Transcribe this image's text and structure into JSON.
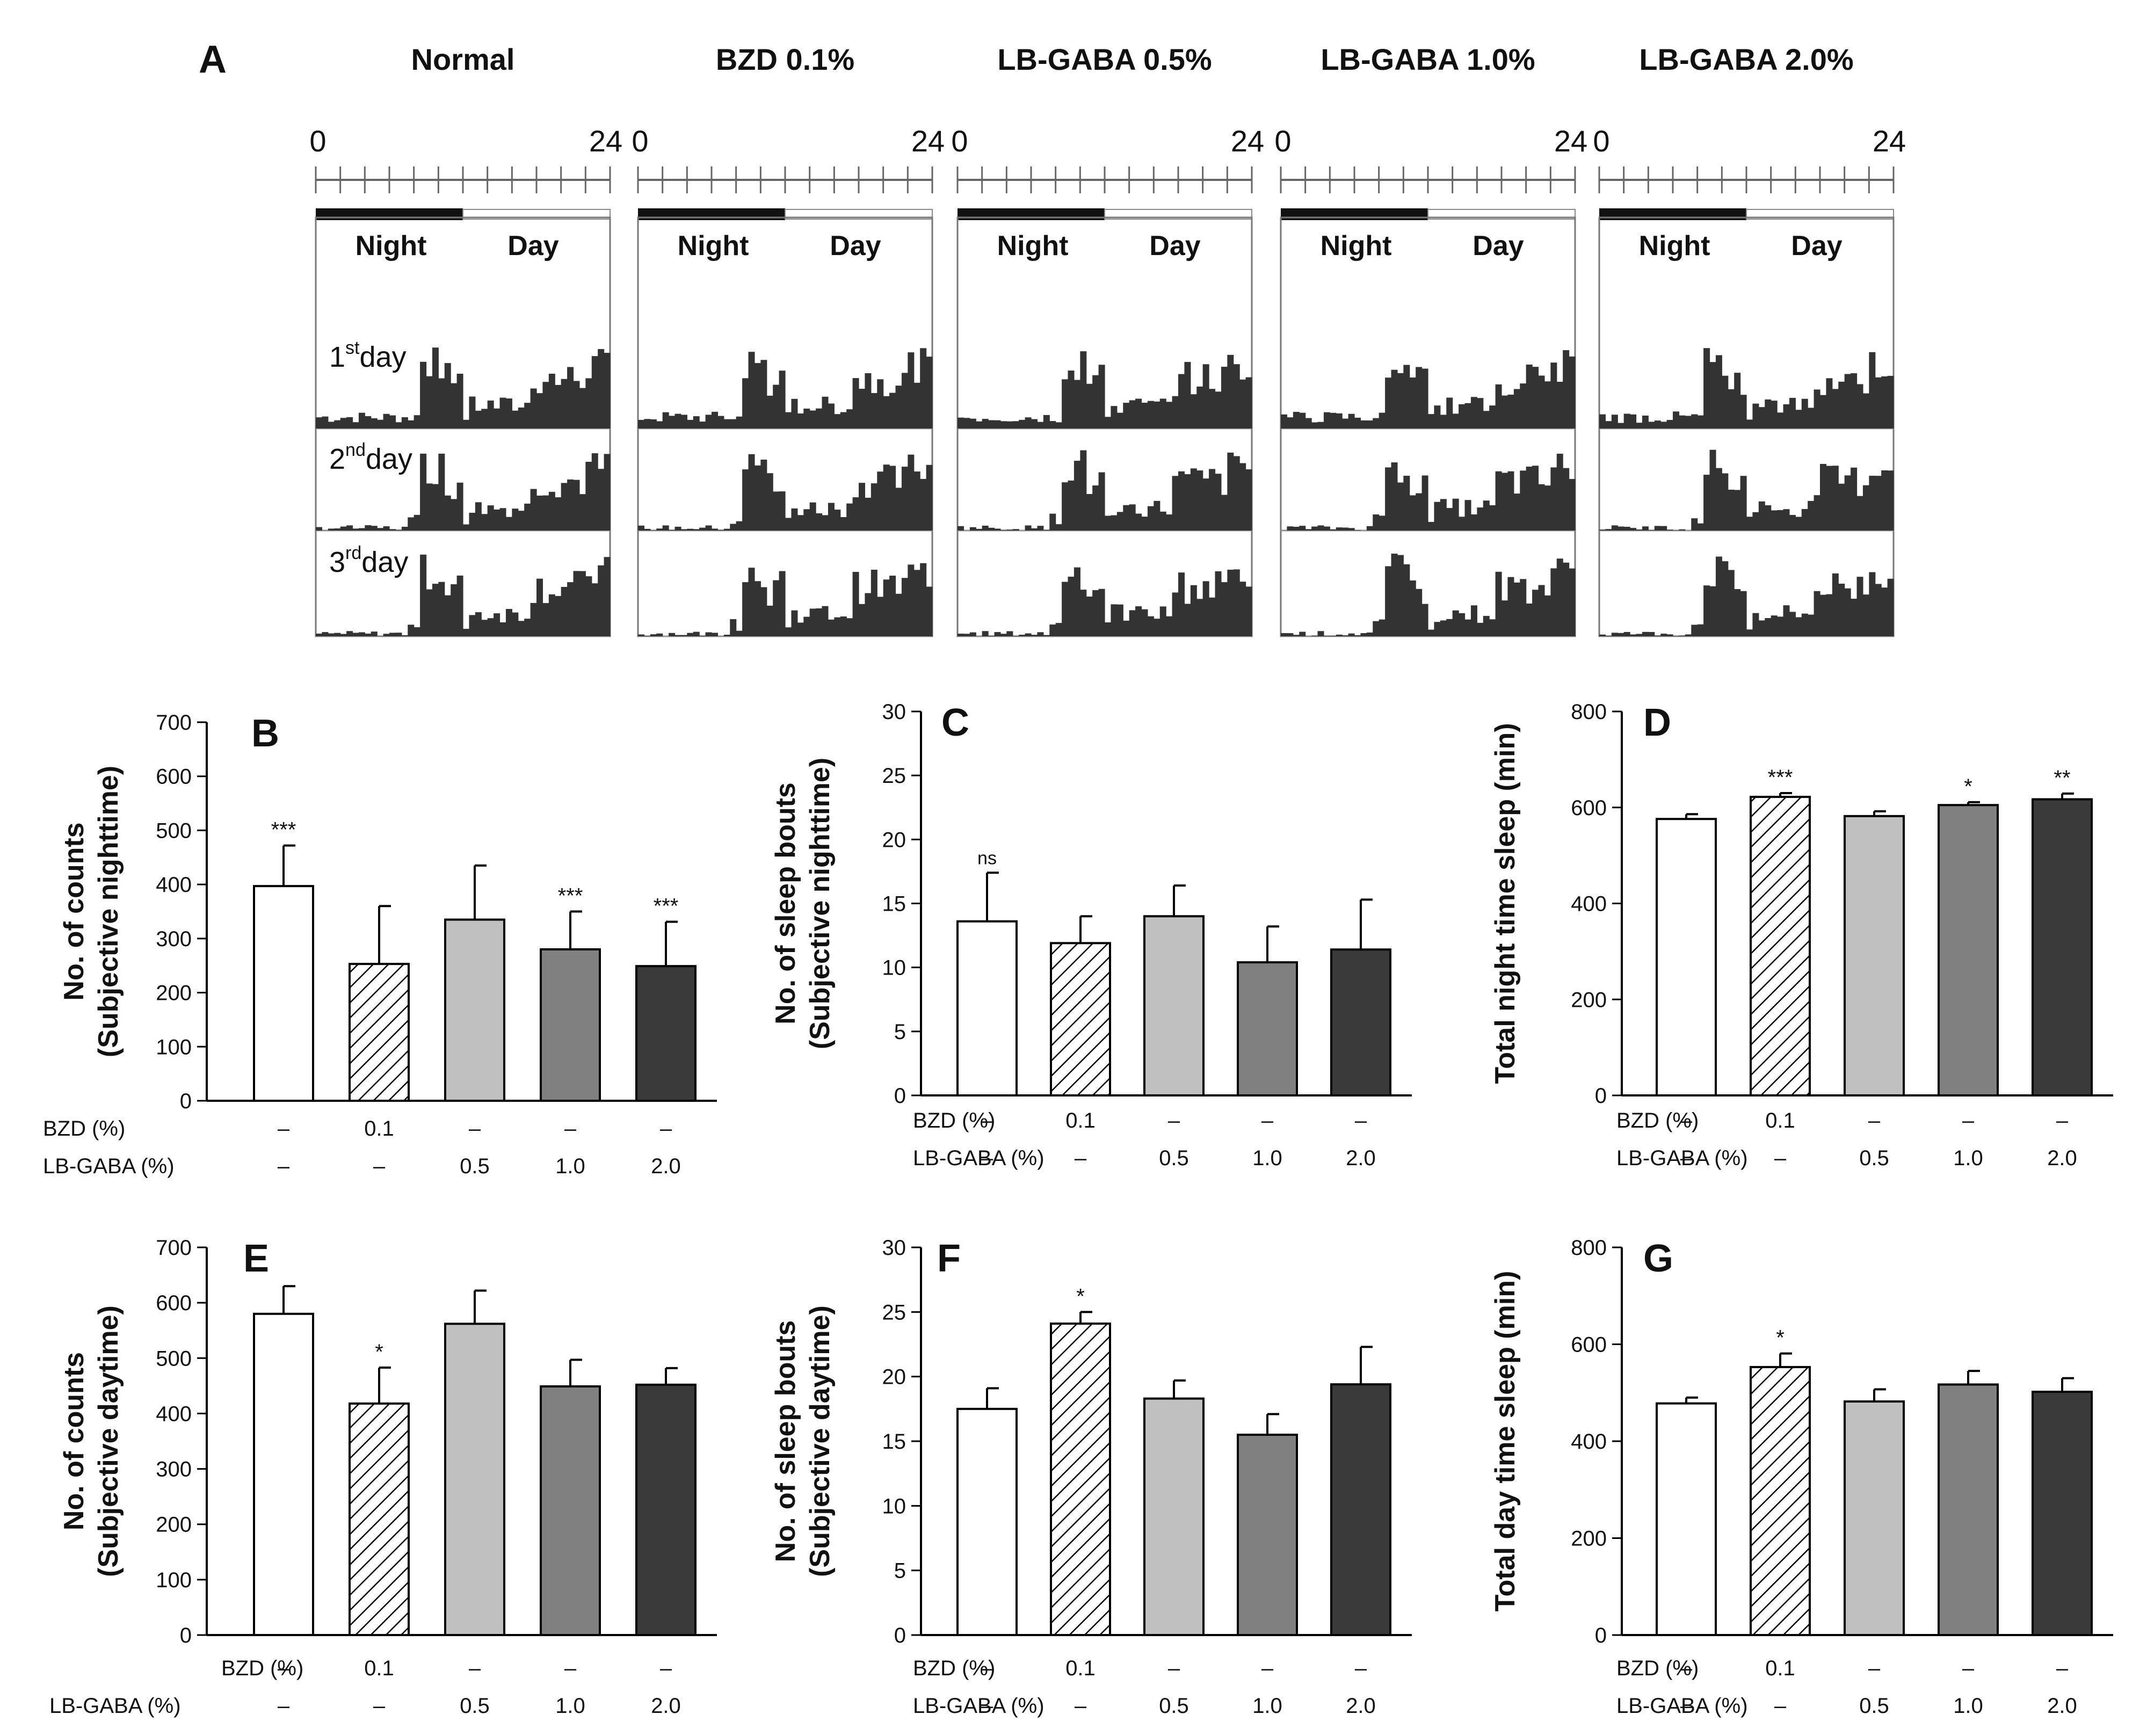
{
  "panel_a": {
    "label": "A",
    "axis_start": "0",
    "axis_end": "24",
    "night_label": "Night",
    "day_label": "Day",
    "day_labels": [
      {
        "num": "1",
        "sup": "st",
        "word": "day"
      },
      {
        "num": "2",
        "sup": "nd",
        "word": "day"
      },
      {
        "num": "3",
        "sup": "rd",
        "word": "day"
      }
    ],
    "groups": [
      "Normal",
      "BZD 0.1%",
      "LB-GABA 0.5%",
      "LB-GABA 1.0%",
      "LB-GABA 2.0%"
    ],
    "colors": {
      "bar": "#333333",
      "night_bar": "#111111",
      "border": "#777777"
    }
  },
  "conditions": {
    "row1_label": "BZD  (%)",
    "row2_label": "LB-GABA (%)",
    "bzd": [
      "–",
      "0.1",
      "–",
      "–",
      "–"
    ],
    "lbgaba": [
      "–",
      "–",
      "0.5",
      "1.0",
      "2.0"
    ]
  },
  "bar_style": {
    "fills": [
      "#ffffff",
      "hatch",
      "#c0c0c0",
      "#808080",
      "#3a3a3a"
    ],
    "stroke": "#000000"
  },
  "chart_data": [
    {
      "id": "B",
      "type": "bar",
      "label": "B",
      "ylabel": [
        "No. of counts",
        "(Subjective nighttime)"
      ],
      "ylim": [
        0,
        700
      ],
      "yticks": [
        0,
        100,
        200,
        300,
        400,
        500,
        600,
        700
      ],
      "categories": [
        "Normal",
        "BZD 0.1%",
        "LB-GABA 0.5%",
        "LB-GABA 1.0%",
        "LB-GABA 2.0%"
      ],
      "values": [
        397,
        253,
        335,
        280,
        249
      ],
      "errors": [
        75,
        107,
        100,
        70,
        82
      ],
      "sig": [
        "***",
        "",
        "",
        "***",
        "***"
      ]
    },
    {
      "id": "C",
      "type": "bar",
      "label": "C",
      "ylabel": [
        "No. of sleep bouts",
        "(Subjective nighttime)"
      ],
      "ylim": [
        0,
        30
      ],
      "yticks": [
        0,
        5,
        10,
        15,
        20,
        25,
        30
      ],
      "categories": [
        "Normal",
        "BZD 0.1%",
        "LB-GABA 0.5%",
        "LB-GABA 1.0%",
        "LB-GABA 2.0%"
      ],
      "values": [
        13.6,
        11.9,
        14.0,
        10.4,
        11.4
      ],
      "errors": [
        3.8,
        2.1,
        2.4,
        2.8,
        3.9
      ],
      "sig": [
        "ns",
        "",
        "",
        "",
        ""
      ]
    },
    {
      "id": "D",
      "type": "bar",
      "label": "D",
      "ylabel": [
        "Total night time sleep (min)"
      ],
      "ylim": [
        0,
        800
      ],
      "yticks": [
        0,
        200,
        400,
        600,
        800
      ],
      "categories": [
        "Normal",
        "BZD 0.1%",
        "LB-GABA 0.5%",
        "LB-GABA 1.0%",
        "LB-GABA 2.0%"
      ],
      "values": [
        576,
        622,
        582,
        605,
        617
      ],
      "errors": [
        10,
        8,
        10,
        6,
        12
      ],
      "sig": [
        "",
        "***",
        "",
        "*",
        "**"
      ]
    },
    {
      "id": "E",
      "type": "bar",
      "label": "E",
      "ylabel": [
        "No. of counts",
        "(Subjective daytime)"
      ],
      "ylim": [
        0,
        700
      ],
      "yticks": [
        0,
        100,
        200,
        300,
        400,
        500,
        600,
        700
      ],
      "categories": [
        "Normal",
        "BZD 0.1%",
        "LB-GABA 0.5%",
        "LB-GABA 1.0%",
        "LB-GABA 2.0%"
      ],
      "values": [
        580,
        418,
        562,
        449,
        452
      ],
      "errors": [
        50,
        65,
        60,
        48,
        30
      ],
      "sig": [
        "",
        "*",
        "",
        "",
        ""
      ]
    },
    {
      "id": "F",
      "type": "bar",
      "label": "F",
      "ylabel": [
        "No. of sleep bouts",
        "(Subjective daytime)"
      ],
      "ylim": [
        0,
        30
      ],
      "yticks": [
        0,
        5,
        10,
        15,
        20,
        25,
        30
      ],
      "categories": [
        "Normal",
        "BZD 0.1%",
        "LB-GABA 0.5%",
        "LB-GABA 1.0%",
        "LB-GABA 2.0%"
      ],
      "values": [
        17.5,
        24.1,
        18.3,
        15.5,
        19.4
      ],
      "errors": [
        1.6,
        0.9,
        1.4,
        1.6,
        2.9
      ],
      "sig": [
        "",
        "*",
        "",
        "",
        ""
      ]
    },
    {
      "id": "G",
      "type": "bar",
      "label": "G",
      "ylabel": [
        "Total day time sleep (min)"
      ],
      "ylim": [
        0,
        800
      ],
      "yticks": [
        0,
        200,
        400,
        600,
        800
      ],
      "categories": [
        "Normal",
        "BZD 0.1%",
        "LB-GABA 0.5%",
        "LB-GABA 1.0%",
        "LB-GABA 2.0%"
      ],
      "values": [
        478,
        553,
        482,
        517,
        502
      ],
      "errors": [
        12,
        28,
        25,
        28,
        28
      ],
      "sig": [
        "",
        "*",
        "",
        "",
        ""
      ]
    }
  ]
}
